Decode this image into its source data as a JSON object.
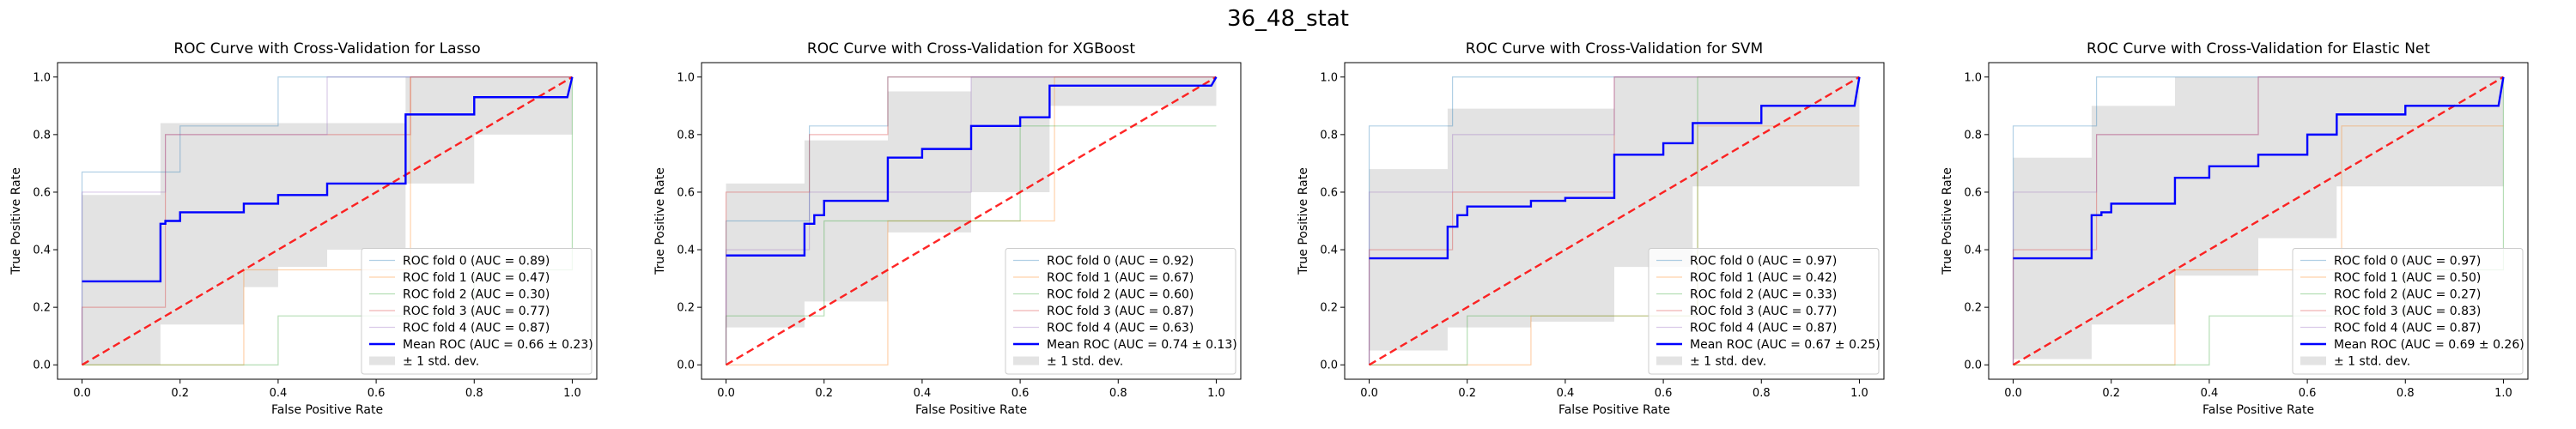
{
  "figure_title": "36_48_stat",
  "chart_data": [
    {
      "type": "line",
      "title": "ROC Curve with Cross-Validation for Lasso",
      "xlabel": "False Positive Rate",
      "ylabel": "True Positive Rate",
      "xlim": [
        -0.05,
        1.05
      ],
      "ylim": [
        -0.05,
        1.05
      ],
      "xticks": [
        "0.0",
        "0.2",
        "0.4",
        "0.6",
        "0.8",
        "1.0"
      ],
      "yticks": [
        "0.0",
        "0.2",
        "0.4",
        "0.6",
        "0.8",
        "1.0"
      ],
      "legend_position": "lower right",
      "series": [
        {
          "name": "ROC fold 0 (AUC = 0.89)",
          "color": "#1f77b4",
          "x": [
            0,
            0,
            0.2,
            0.2,
            0.4,
            0.4,
            1
          ],
          "y": [
            0,
            0.67,
            0.67,
            0.83,
            0.83,
            1,
            1
          ]
        },
        {
          "name": "ROC fold 1 (AUC = 0.47)",
          "color": "#ff7f0e",
          "x": [
            0,
            0.33,
            0.33,
            0.67,
            0.67,
            1
          ],
          "y": [
            0,
            0,
            0.33,
            0.33,
            1,
            1
          ]
        },
        {
          "name": "ROC fold 2 (AUC = 0.30)",
          "color": "#2ca02c",
          "x": [
            0,
            0.4,
            0.4,
            0.8,
            0.8,
            1,
            1
          ],
          "y": [
            0,
            0,
            0.17,
            0.17,
            0.33,
            0.33,
            1
          ]
        },
        {
          "name": "ROC fold 3 (AUC = 0.77)",
          "color": "#d62728",
          "x": [
            0,
            0,
            0.17,
            0.17,
            0.67,
            0.67,
            1
          ],
          "y": [
            0,
            0.2,
            0.2,
            0.8,
            0.8,
            1,
            1
          ]
        },
        {
          "name": "ROC fold 4 (AUC = 0.87)",
          "color": "#9467bd",
          "x": [
            0,
            0,
            0.17,
            0.17,
            0.5,
            0.5,
            1
          ],
          "y": [
            0,
            0.6,
            0.6,
            0.8,
            0.8,
            1,
            1
          ]
        },
        {
          "name": "Mean ROC (AUC = 0.66 ± 0.23)",
          "color": "#0000ff",
          "role": "mean",
          "x": [
            0,
            0.16,
            0.16,
            0.17,
            0.17,
            0.2,
            0.2,
            0.33,
            0.33,
            0.4,
            0.4,
            0.5,
            0.5,
            0.66,
            0.66,
            0.8,
            0.8,
            0.99,
            1
          ],
          "y": [
            0.29,
            0.29,
            0.49,
            0.49,
            0.5,
            0.5,
            0.53,
            0.53,
            0.56,
            0.56,
            0.59,
            0.59,
            0.63,
            0.63,
            0.87,
            0.87,
            0.93,
            0.93,
            1.0
          ]
        }
      ],
      "band": {
        "name": "± 1 std. dev.",
        "color": "#cccccc",
        "x": [
          0,
          0.16,
          0.16,
          0.33,
          0.33,
          0.4,
          0.4,
          0.5,
          0.5,
          0.66,
          0.66,
          0.8,
          0.8,
          1
        ],
        "upper": [
          0.59,
          0.59,
          0.84,
          0.84,
          0.84,
          0.84,
          0.84,
          0.84,
          0.84,
          0.84,
          1,
          1,
          1,
          1
        ],
        "lower": [
          0.0,
          0.0,
          0.14,
          0.14,
          0.27,
          0.27,
          0.34,
          0.34,
          0.4,
          0.4,
          0.63,
          0.63,
          0.8,
          0.8
        ]
      },
      "chance_line": {
        "color": "#ff0000",
        "x": [
          0,
          1
        ],
        "y": [
          0,
          1
        ]
      }
    },
    {
      "type": "line",
      "title": "ROC Curve with Cross-Validation for XGBoost",
      "xlabel": "False Positive Rate",
      "ylabel": "True Positive Rate",
      "xlim": [
        -0.05,
        1.05
      ],
      "ylim": [
        -0.05,
        1.05
      ],
      "xticks": [
        "0.0",
        "0.2",
        "0.4",
        "0.6",
        "0.8",
        "1.0"
      ],
      "yticks": [
        "0.0",
        "0.2",
        "0.4",
        "0.6",
        "0.8",
        "1.0"
      ],
      "legend_position": "lower right",
      "series": [
        {
          "name": "ROC fold 0 (AUC = 0.92)",
          "color": "#1f77b4",
          "x": [
            0,
            0,
            0.17,
            0.17,
            0.33,
            0.33,
            1
          ],
          "y": [
            0,
            0.5,
            0.5,
            0.83,
            0.83,
            1,
            1
          ]
        },
        {
          "name": "ROC fold 1 (AUC = 0.67)",
          "color": "#ff7f0e",
          "x": [
            0,
            0.33,
            0.33,
            0.67,
            0.67,
            1
          ],
          "y": [
            0,
            0,
            0.5,
            0.5,
            1,
            1
          ]
        },
        {
          "name": "ROC fold 2 (AUC = 0.60)",
          "color": "#2ca02c",
          "x": [
            0,
            0,
            0.2,
            0.2,
            0.6,
            0.6,
            1
          ],
          "y": [
            0,
            0.17,
            0.17,
            0.5,
            0.5,
            0.83,
            0.83
          ]
        },
        {
          "name": "ROC fold 3 (AUC = 0.87)",
          "color": "#d62728",
          "x": [
            0,
            0,
            0.17,
            0.17,
            0.33,
            0.33,
            1
          ],
          "y": [
            0,
            0.6,
            0.6,
            0.8,
            0.8,
            1,
            1
          ]
        },
        {
          "name": "ROC fold 4 (AUC = 0.63)",
          "color": "#9467bd",
          "x": [
            0,
            0,
            0.17,
            0.17,
            0.5,
            0.5,
            1
          ],
          "y": [
            0,
            0.4,
            0.4,
            0.6,
            0.6,
            1,
            1
          ]
        },
        {
          "name": "Mean ROC (AUC = 0.74 ± 0.13)",
          "color": "#0000ff",
          "role": "mean",
          "x": [
            0,
            0.16,
            0.16,
            0.18,
            0.18,
            0.2,
            0.2,
            0.33,
            0.33,
            0.4,
            0.4,
            0.5,
            0.5,
            0.6,
            0.6,
            0.66,
            0.66,
            0.99,
            1
          ],
          "y": [
            0.38,
            0.38,
            0.49,
            0.49,
            0.52,
            0.52,
            0.57,
            0.57,
            0.72,
            0.72,
            0.75,
            0.75,
            0.83,
            0.83,
            0.86,
            0.86,
            0.97,
            0.97,
            1.0
          ]
        },
        {
          "name": "",
          "color": "#ff7f0e",
          "role": "hidden",
          "x": [],
          "y": []
        }
      ],
      "band": {
        "name": "± 1 std. dev.",
        "color": "#cccccc",
        "x": [
          0,
          0.16,
          0.16,
          0.33,
          0.33,
          0.5,
          0.5,
          0.66,
          0.66,
          1
        ],
        "upper": [
          0.63,
          0.63,
          0.78,
          0.78,
          0.95,
          0.95,
          1.0,
          1.0,
          1.0,
          1.0
        ],
        "lower": [
          0.13,
          0.13,
          0.22,
          0.22,
          0.46,
          0.46,
          0.6,
          0.6,
          0.9,
          0.9
        ]
      },
      "chance_line": {
        "color": "#ff0000",
        "x": [
          0,
          1
        ],
        "y": [
          0,
          1
        ]
      }
    },
    {
      "type": "line",
      "title": "ROC Curve with Cross-Validation for SVM",
      "xlabel": "False Positive Rate",
      "ylabel": "True Positive Rate",
      "xlim": [
        -0.05,
        1.05
      ],
      "ylim": [
        -0.05,
        1.05
      ],
      "xticks": [
        "0.0",
        "0.2",
        "0.4",
        "0.6",
        "0.8",
        "1.0"
      ],
      "yticks": [
        "0.0",
        "0.2",
        "0.4",
        "0.6",
        "0.8",
        "1.0"
      ],
      "legend_position": "lower right",
      "series": [
        {
          "name": "ROC fold 0 (AUC = 0.97)",
          "color": "#1f77b4",
          "x": [
            0,
            0,
            0.17,
            0.17,
            1
          ],
          "y": [
            0,
            0.83,
            0.83,
            1,
            1
          ]
        },
        {
          "name": "ROC fold 1 (AUC = 0.42)",
          "color": "#ff7f0e",
          "x": [
            0,
            0.33,
            0.33,
            0.67,
            0.67,
            1
          ],
          "y": [
            0,
            0,
            0.17,
            0.17,
            0.83,
            0.83
          ]
        },
        {
          "name": "ROC fold 2 (AUC = 0.33)",
          "color": "#2ca02c",
          "x": [
            0,
            0.2,
            0.2,
            0.67,
            0.67,
            1
          ],
          "y": [
            0,
            0,
            0.17,
            0.17,
            1,
            1
          ]
        },
        {
          "name": "ROC fold 3 (AUC = 0.77)",
          "color": "#d62728",
          "x": [
            0,
            0,
            0.17,
            0.17,
            0.5,
            0.5,
            1
          ],
          "y": [
            0,
            0.4,
            0.4,
            0.6,
            0.6,
            1,
            1
          ]
        },
        {
          "name": "ROC fold 4 (AUC = 0.87)",
          "color": "#9467bd",
          "x": [
            0,
            0,
            0.17,
            0.17,
            0.5,
            0.5,
            1
          ],
          "y": [
            0,
            0.6,
            0.6,
            0.8,
            0.8,
            1,
            1
          ]
        },
        {
          "name": "Mean ROC (AUC = 0.67 ± 0.25)",
          "color": "#0000ff",
          "role": "mean",
          "x": [
            0,
            0.16,
            0.16,
            0.18,
            0.18,
            0.2,
            0.2,
            0.33,
            0.33,
            0.4,
            0.4,
            0.5,
            0.5,
            0.6,
            0.6,
            0.66,
            0.66,
            0.8,
            0.8,
            0.99,
            1
          ],
          "y": [
            0.37,
            0.37,
            0.48,
            0.48,
            0.52,
            0.52,
            0.55,
            0.55,
            0.57,
            0.57,
            0.58,
            0.58,
            0.73,
            0.73,
            0.77,
            0.77,
            0.84,
            0.84,
            0.9,
            0.9,
            1.0
          ]
        }
      ],
      "band": {
        "name": "± 1 std. dev.",
        "color": "#cccccc",
        "x": [
          0,
          0.16,
          0.16,
          0.33,
          0.33,
          0.5,
          0.5,
          0.66,
          0.66,
          1
        ],
        "upper": [
          0.68,
          0.68,
          0.89,
          0.89,
          0.89,
          0.89,
          1.0,
          1.0,
          1.0,
          1.0
        ],
        "lower": [
          0.05,
          0.05,
          0.13,
          0.13,
          0.15,
          0.15,
          0.34,
          0.34,
          0.62,
          0.62
        ]
      },
      "chance_line": {
        "color": "#ff0000",
        "x": [
          0,
          1
        ],
        "y": [
          0,
          1
        ]
      }
    },
    {
      "type": "line",
      "title": "ROC Curve with Cross-Validation for Elastic Net",
      "xlabel": "False Positive Rate",
      "ylabel": "True Positive Rate",
      "xlim": [
        -0.05,
        1.05
      ],
      "ylim": [
        -0.05,
        1.05
      ],
      "xticks": [
        "0.0",
        "0.2",
        "0.4",
        "0.6",
        "0.8",
        "1.0"
      ],
      "yticks": [
        "0.0",
        "0.2",
        "0.4",
        "0.6",
        "0.8",
        "1.0"
      ],
      "legend_position": "lower right",
      "series": [
        {
          "name": "ROC fold 0 (AUC = 0.97)",
          "color": "#1f77b4",
          "x": [
            0,
            0,
            0.17,
            0.17,
            1
          ],
          "y": [
            0,
            0.83,
            0.83,
            1,
            1
          ]
        },
        {
          "name": "ROC fold 1 (AUC = 0.50)",
          "color": "#ff7f0e",
          "x": [
            0,
            0.33,
            0.33,
            0.67,
            0.67,
            1
          ],
          "y": [
            0,
            0,
            0.33,
            0.33,
            0.83,
            0.83
          ]
        },
        {
          "name": "ROC fold 2 (AUC = 0.27)",
          "color": "#2ca02c",
          "x": [
            0,
            0.4,
            0.4,
            0.8,
            0.8,
            1,
            1
          ],
          "y": [
            0,
            0,
            0.17,
            0.17,
            0.33,
            0.33,
            1
          ]
        },
        {
          "name": "ROC fold 3 (AUC = 0.83)",
          "color": "#d62728",
          "x": [
            0,
            0,
            0.17,
            0.17,
            0.5,
            0.5,
            1
          ],
          "y": [
            0,
            0.4,
            0.4,
            0.8,
            0.8,
            1,
            1
          ]
        },
        {
          "name": "ROC fold 4 (AUC = 0.87)",
          "color": "#9467bd",
          "x": [
            0,
            0,
            0.17,
            0.17,
            0.5,
            0.5,
            1
          ],
          "y": [
            0,
            0.6,
            0.6,
            0.8,
            0.8,
            1,
            1
          ]
        },
        {
          "name": "Mean ROC (AUC = 0.69 ± 0.26)",
          "color": "#0000ff",
          "role": "mean",
          "x": [
            0,
            0.16,
            0.16,
            0.18,
            0.18,
            0.2,
            0.2,
            0.33,
            0.33,
            0.4,
            0.4,
            0.5,
            0.5,
            0.6,
            0.6,
            0.66,
            0.66,
            0.8,
            0.8,
            0.99,
            1
          ],
          "y": [
            0.37,
            0.37,
            0.52,
            0.52,
            0.53,
            0.53,
            0.56,
            0.56,
            0.65,
            0.65,
            0.69,
            0.69,
            0.73,
            0.73,
            0.8,
            0.8,
            0.87,
            0.87,
            0.9,
            0.9,
            1.0
          ]
        }
      ],
      "band": {
        "name": "± 1 std. dev.",
        "color": "#cccccc",
        "x": [
          0,
          0.16,
          0.16,
          0.33,
          0.33,
          0.5,
          0.5,
          0.66,
          0.66,
          1
        ],
        "upper": [
          0.72,
          0.72,
          0.9,
          0.9,
          1.0,
          1.0,
          1.0,
          1.0,
          1.0,
          1.0
        ],
        "lower": [
          0.02,
          0.02,
          0.14,
          0.14,
          0.31,
          0.31,
          0.44,
          0.44,
          0.62,
          0.62
        ]
      },
      "chance_line": {
        "color": "#ff0000",
        "x": [
          0,
          1
        ],
        "y": [
          0,
          1
        ]
      }
    }
  ]
}
